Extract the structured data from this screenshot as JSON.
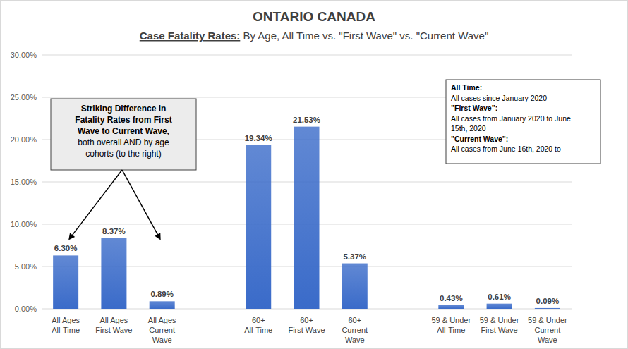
{
  "chart_data": {
    "type": "bar",
    "title": "ONTARIO CANADA",
    "subtitle": [
      "Case Fatality Rates:",
      " By Age, All Time vs. \"First Wave\" vs. \"Current Wave\""
    ],
    "categories": [
      "All Ages\nAll-Time",
      "All Ages\nFirst Wave",
      "All Ages\nCurrent\nWave",
      null,
      "60+\nAll-Time",
      "60+\nFirst Wave",
      "60+\nCurrent\nWave",
      null,
      "59 & Under\nAll-Time",
      "59 & Under\nFirst Wave",
      "59 & Under\nCurrent\nWave"
    ],
    "values": [
      6.3,
      8.37,
      0.89,
      null,
      19.34,
      21.53,
      5.37,
      null,
      0.43,
      0.61,
      0.09
    ],
    "value_labels": [
      "6.30%",
      "8.37%",
      "0.89%",
      null,
      "19.34%",
      "21.53%",
      "5.37%",
      null,
      "0.43%",
      "0.61%",
      "0.09%"
    ],
    "color": "#3a6bc9",
    "ylim": [
      0,
      30
    ],
    "yticks": [
      {
        "value": 0,
        "label": "0.00%"
      },
      {
        "value": 5,
        "label": "5.00%"
      },
      {
        "value": 10,
        "label": "10.00%"
      },
      {
        "value": 15,
        "label": "15.00%"
      },
      {
        "value": 20,
        "label": "20.00%"
      },
      {
        "value": 25,
        "label": "25.00%"
      },
      {
        "value": 30,
        "label": "30.00%"
      }
    ],
    "grid": true,
    "data_labels": true,
    "annotations": {
      "callout": {
        "heading": [
          "Striking Difference in",
          "Fatality Rates from First",
          "Wave to Current Wave,"
        ],
        "text": [
          "both overall AND by age",
          "cohorts (to the right)"
        ]
      },
      "definitions": [
        {
          "heading": "All Time:",
          "text": [
            "All cases since January 2020"
          ]
        },
        {
          "heading": "\"First Wave\":",
          "text": [
            "All cases from January 2020 to June",
            "15th, 2020"
          ]
        },
        {
          "heading": "\"Current Wave\":",
          "text": [
            "All cases from June 16th, 2020 to"
          ]
        }
      ]
    }
  }
}
